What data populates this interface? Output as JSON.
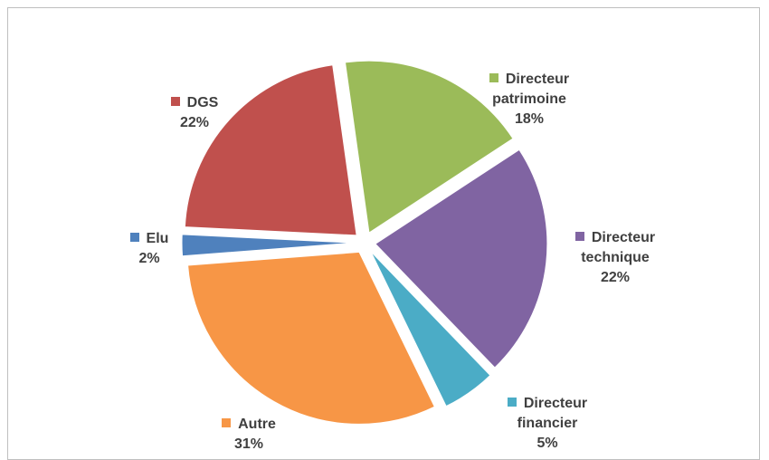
{
  "chart_data": {
    "type": "pie",
    "categories": [
      "Directeur patrimoine",
      "Directeur technique",
      "Directeur financier",
      "Autre",
      "Elu",
      "DGS"
    ],
    "values": [
      18,
      22,
      5,
      31,
      2,
      22
    ],
    "value_labels": [
      "18%",
      "22%",
      "5%",
      "31%",
      "2%",
      "22%"
    ],
    "colors": [
      "#9bbb59",
      "#8064a2",
      "#4bacc6",
      "#f79646",
      "#4f81bd",
      "#c0504d"
    ]
  }
}
